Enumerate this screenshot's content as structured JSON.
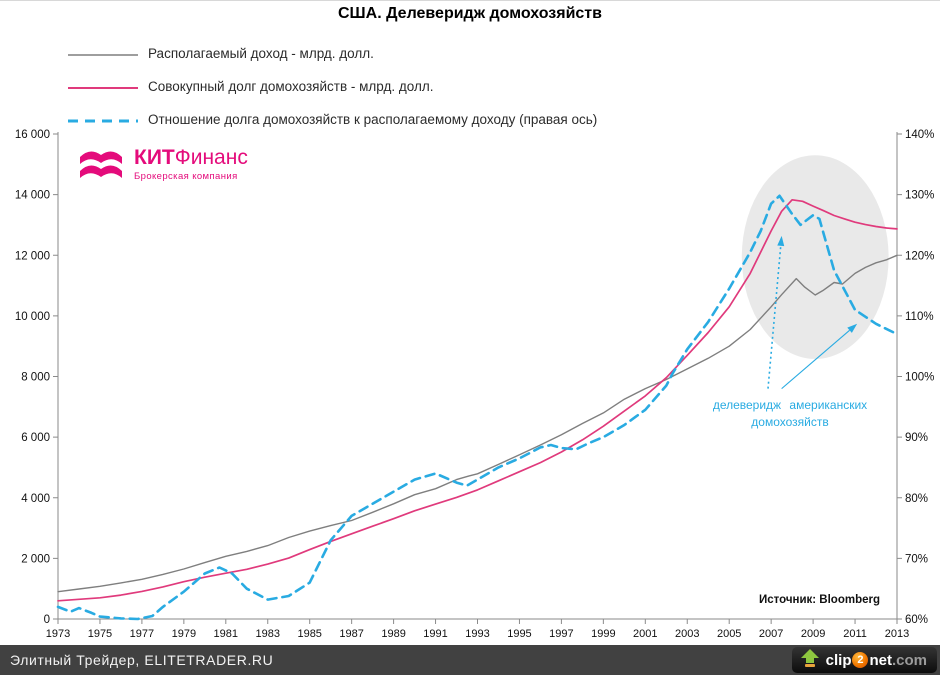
{
  "title": "США. Делеверидж домохозяйств",
  "legend": [
    {
      "label": "Располагаемый доход - млрд. долл.",
      "color": "#7f7f7f",
      "dash": null,
      "width": 1.6
    },
    {
      "label": "Совокупный долг домохозяйств - млрд. долл.",
      "color": "#e03a7c",
      "dash": null,
      "width": 2
    },
    {
      "label": "Отношение долга домохозяйств к располагаемому доходу (правая ось)",
      "color": "#29abe2",
      "dash": "10,7",
      "width": 3
    }
  ],
  "logo": {
    "name_bold": "КИТ",
    "name_rest": "Финанс",
    "subtitle": "Брокерская компания",
    "color": "#e40b7b"
  },
  "annotation": {
    "line1": "делеверидж американских",
    "line2": "домохозяйств",
    "color": "#29abe2"
  },
  "source": "Источник: Bloomberg",
  "footer": {
    "credit": "Элитный Трейдер, ELITETRADER.RU",
    "clip2net": {
      "clip": "clip",
      "two": "2",
      "net": "net",
      "com": ".com"
    }
  },
  "chart_data": {
    "type": "line",
    "title": "США. Делеверидж домохозяйств",
    "x_range": [
      1973,
      2013
    ],
    "x_tick_years": [
      1973,
      1975,
      1977,
      1979,
      1981,
      1983,
      1985,
      1987,
      1989,
      1991,
      1993,
      1995,
      1997,
      1999,
      2001,
      2003,
      2005,
      2007,
      2009,
      2011,
      2013
    ],
    "left_axis": {
      "min": 0,
      "max": 16000,
      "step": 2000,
      "tick_labels": [
        "0",
        "2 000",
        "4 000",
        "6 000",
        "8 000",
        "10 000",
        "12 000",
        "14 000",
        "16 000"
      ]
    },
    "right_axis": {
      "min": 60,
      "max": 140,
      "step": 10,
      "tick_labels": [
        "60%",
        "70%",
        "80%",
        "90%",
        "100%",
        "110%",
        "120%",
        "130%",
        "140%"
      ]
    },
    "grid": false,
    "legend_position": "top-left",
    "series": [
      {
        "name": "Располагаемый доход - млрд. долл.",
        "axis": "left",
        "color": "#7f7f7f",
        "width": 1.4,
        "dash": null,
        "x": [
          1973,
          1974,
          1975,
          1976,
          1977,
          1978,
          1979,
          1980,
          1981,
          1982,
          1983,
          1984,
          1985,
          1986,
          1987,
          1988,
          1989,
          1990,
          1991,
          1992,
          1992.6,
          1993,
          1994,
          1995,
          1996,
          1997,
          1998,
          1999,
          2000,
          2001,
          2002,
          2003,
          2004,
          2005,
          2006,
          2007,
          2007.5,
          2008.2,
          2008.6,
          2009.1,
          2009.5,
          2010,
          2010.4,
          2011,
          2011.5,
          2012,
          2012.5,
          2013
        ],
        "values": [
          900,
          990,
          1080,
          1190,
          1310,
          1470,
          1650,
          1860,
          2070,
          2230,
          2420,
          2690,
          2900,
          3080,
          3250,
          3520,
          3800,
          4100,
          4300,
          4600,
          4720,
          4790,
          5100,
          5420,
          5740,
          6080,
          6450,
          6800,
          7250,
          7600,
          7900,
          8250,
          8600,
          9000,
          9550,
          10300,
          10700,
          11230,
          10950,
          10690,
          10850,
          11100,
          11050,
          11400,
          11600,
          11750,
          11850,
          12000
        ]
      },
      {
        "name": "Совокупный долг домохозяйств - млрд. долл.",
        "axis": "left",
        "color": "#e03a7c",
        "width": 1.7,
        "dash": null,
        "x": [
          1973,
          1974,
          1975,
          1976,
          1977,
          1978,
          1979,
          1980,
          1981,
          1982,
          1983,
          1984,
          1985,
          1986,
          1987,
          1988,
          1989,
          1990,
          1991,
          1992,
          1993,
          1994,
          1995,
          1996,
          1997,
          1998,
          1999,
          2000,
          2001,
          2002,
          2003,
          2004,
          2005,
          2006,
          2007,
          2007.5,
          2008,
          2008.5,
          2009,
          2009.5,
          2010,
          2010.5,
          2011,
          2011.5,
          2012,
          2012.5,
          2013
        ],
        "values": [
          600,
          650,
          700,
          790,
          910,
          1060,
          1230,
          1380,
          1510,
          1640,
          1810,
          2010,
          2290,
          2560,
          2810,
          3060,
          3310,
          3570,
          3790,
          4010,
          4260,
          4560,
          4860,
          5160,
          5510,
          5910,
          6360,
          6860,
          7360,
          7960,
          8700,
          9450,
          10300,
          11400,
          12800,
          13450,
          13830,
          13780,
          13620,
          13470,
          13310,
          13200,
          13090,
          13010,
          12950,
          12900,
          12870
        ]
      },
      {
        "name": "Отношение долга домохозяйств к располагаемому доходу (правая ось)",
        "axis": "right",
        "color": "#29abe2",
        "width": 2.6,
        "dash": "9,6",
        "x": [
          1973,
          1973.6,
          1974,
          1974.6,
          1975,
          1976,
          1976.8,
          1977.5,
          1978,
          1979,
          1980,
          1980.7,
          1981.3,
          1982,
          1983,
          1984,
          1985,
          1985.5,
          1986,
          1987,
          1988,
          1989,
          1990,
          1991,
          1992,
          1992.5,
          1993,
          1994,
          1995,
          1996,
          1996.5,
          1997,
          1997.7,
          1998.3,
          1999,
          2000,
          2001,
          2002,
          2002.3,
          2003,
          2004,
          2005,
          2006,
          2006.5,
          2007,
          2007.4,
          2008,
          2008.4,
          2009,
          2009.3,
          2010,
          2011,
          2012,
          2013
        ],
        "values": [
          62,
          61.2,
          61.8,
          61,
          60.4,
          60.1,
          60,
          60.5,
          62,
          64.5,
          67.5,
          68.5,
          67.5,
          65,
          63.2,
          63.8,
          66,
          69.5,
          73,
          77,
          79,
          81,
          83,
          84,
          82.5,
          82,
          83,
          85,
          86.5,
          88.3,
          88.7,
          88.2,
          88,
          89,
          90,
          92,
          94.5,
          98.5,
          100.5,
          104.5,
          109,
          114.5,
          120.5,
          124,
          128.5,
          129.8,
          126.8,
          125,
          126.6,
          126,
          117.5,
          111,
          108.7,
          107
        ]
      }
    ],
    "highlight_ellipse": {
      "cx_year": 2009.1,
      "cy_pct": 119.7,
      "rx_years": 3.5,
      "ry_pct": 16.8,
      "fill": "#e9e9e9"
    },
    "arrows": [
      {
        "style": "dotted",
        "from_year": 2006.85,
        "from_pct": 98.0,
        "to_year": 2007.5,
        "to_pct": 123.2,
        "color": "#29abe2"
      },
      {
        "style": "solid",
        "from_year": 2007.5,
        "from_pct": 98.0,
        "to_year": 2011.1,
        "to_pct": 108.7,
        "color": "#29abe2"
      }
    ]
  }
}
